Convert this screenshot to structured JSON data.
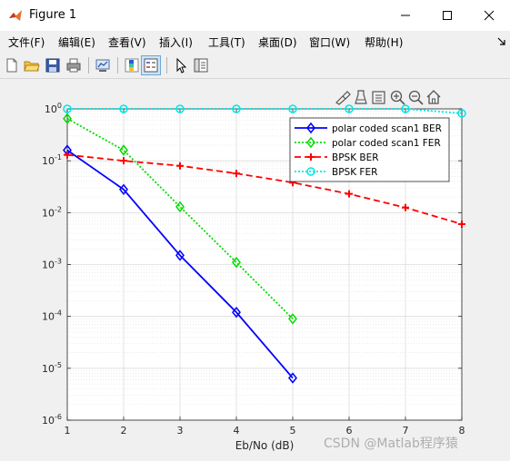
{
  "window": {
    "title": "Figure 1",
    "icon": "matlab-icon",
    "controls": [
      "minimize-icon",
      "maximize-icon",
      "close-icon"
    ]
  },
  "menu": {
    "items": [
      "文件(F)",
      "编辑(E)",
      "查看(V)",
      "插入(I)",
      "工具(T)",
      "桌面(D)",
      "窗口(W)",
      "帮助(H)"
    ],
    "overflow_icon": "arrow-icon"
  },
  "toolbar": {
    "icons": [
      "new-figure-icon",
      "open-file-icon",
      "save-icon",
      "print-icon",
      "link-plot-icon",
      "insert-colorbar-icon",
      "insert-legend-icon",
      "edit-plot-icon",
      "property-inspector-icon"
    ]
  },
  "axes_toolbar": {
    "icons": [
      "brush-icon",
      "data-tips-icon",
      "export-icon",
      "zoom-in-icon",
      "zoom-out-icon",
      "home-icon"
    ]
  },
  "chart_data": {
    "type": "line",
    "xlabel": "Eb/No (dB)",
    "ylabel": "",
    "title": "",
    "xlim": [
      1,
      8
    ],
    "ylim": [
      1e-06,
      1
    ],
    "yscale": "log",
    "xticks": [
      "1",
      "2",
      "3",
      "4",
      "5",
      "6",
      "7",
      "8"
    ],
    "yticks": [
      {
        "base": "10",
        "exp": "-6"
      },
      {
        "base": "10",
        "exp": "-5"
      },
      {
        "base": "10",
        "exp": "-4"
      },
      {
        "base": "10",
        "exp": "-3"
      },
      {
        "base": "10",
        "exp": "-2"
      },
      {
        "base": "10",
        "exp": "-1"
      },
      {
        "base": "10",
        "exp": "0"
      }
    ],
    "grid": true,
    "legend_position": "top-right",
    "series": [
      {
        "name": "polar coded scan1 BER",
        "color": "#0000ff",
        "style": "solid",
        "marker": "diamond",
        "x": [
          1,
          2,
          3,
          4,
          5
        ],
        "y": [
          0.16,
          0.028,
          0.0015,
          0.00012,
          6.5e-06
        ]
      },
      {
        "name": "polar coded scan1 FER",
        "color": "#00dd00",
        "style": "dotted",
        "marker": "diamond",
        "x": [
          1,
          2,
          3,
          4,
          5
        ],
        "y": [
          0.65,
          0.16,
          0.013,
          0.0011,
          9e-05
        ]
      },
      {
        "name": "BPSK BER",
        "color": "#ff0000",
        "style": "dashed",
        "marker": "plus",
        "x": [
          1,
          2,
          3,
          4,
          5,
          6,
          7,
          8
        ],
        "y": [
          0.13,
          0.1,
          0.08,
          0.057,
          0.038,
          0.023,
          0.0125,
          0.006
        ]
      },
      {
        "name": "BPSK FER",
        "color": "#00e5e5",
        "style": "dotted",
        "marker": "circle",
        "x": [
          1,
          2,
          3,
          4,
          5,
          6,
          7,
          8
        ],
        "y": [
          1,
          1,
          1,
          1,
          1,
          1,
          1,
          0.82
        ]
      }
    ]
  },
  "watermark": "CSDN @Matlab程序猿"
}
